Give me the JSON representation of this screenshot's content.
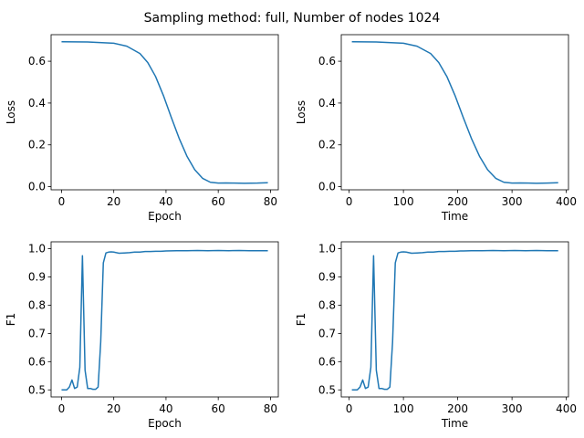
{
  "figure": {
    "title": "Sampling method: full, Number of nodes 1024"
  },
  "style": {
    "line_color": "#1f77b4",
    "background": "#ffffff"
  },
  "chart_data": [
    {
      "type": "line",
      "xlabel": "Epoch",
      "ylabel": "Loss",
      "xlim": [
        -4,
        83
      ],
      "ylim": [
        -0.015,
        0.727
      ],
      "xticks": [
        0,
        20,
        40,
        60,
        80
      ],
      "xticklabels": [
        "0",
        "20",
        "40",
        "60",
        "80"
      ],
      "yticks": [
        0.0,
        0.2,
        0.4,
        0.6
      ],
      "yticklabels": [
        "0.0",
        "0.2",
        "0.4",
        "0.6"
      ],
      "grid": false,
      "series": [
        {
          "x": [
            0,
            10,
            20,
            25,
            30,
            33,
            36,
            39,
            42,
            45,
            48,
            51,
            54,
            57,
            60,
            63,
            66,
            70,
            75,
            79
          ],
          "y": [
            0.693,
            0.692,
            0.686,
            0.672,
            0.637,
            0.594,
            0.527,
            0.436,
            0.332,
            0.232,
            0.146,
            0.081,
            0.04,
            0.021,
            0.017,
            0.018,
            0.017,
            0.016,
            0.017,
            0.019
          ]
        }
      ]
    },
    {
      "type": "line",
      "xlabel": "Time",
      "ylabel": "Loss",
      "xlim": [
        -14.5,
        404
      ],
      "ylim": [
        -0.015,
        0.727
      ],
      "xticks": [
        0,
        100,
        200,
        300,
        400
      ],
      "xticklabels": [
        "0",
        "100",
        "200",
        "300",
        "400"
      ],
      "yticks": [
        0.0,
        0.2,
        0.4,
        0.6
      ],
      "yticklabels": [
        "0.0",
        "0.2",
        "0.4",
        "0.6"
      ],
      "grid": false,
      "series": [
        {
          "x": [
            5,
            50,
            100,
            125,
            150,
            165,
            180,
            195,
            210,
            225,
            240,
            255,
            270,
            285,
            300,
            315,
            330,
            345,
            365,
            385
          ],
          "y": [
            0.693,
            0.692,
            0.686,
            0.672,
            0.637,
            0.594,
            0.527,
            0.436,
            0.332,
            0.232,
            0.146,
            0.081,
            0.04,
            0.021,
            0.017,
            0.018,
            0.017,
            0.016,
            0.017,
            0.019
          ]
        }
      ]
    },
    {
      "type": "line",
      "xlabel": "Epoch",
      "ylabel": "F1",
      "xlim": [
        -4,
        83
      ],
      "ylim": [
        0.475,
        1.0245
      ],
      "xticks": [
        0,
        20,
        40,
        60,
        80
      ],
      "xticklabels": [
        "0",
        "20",
        "40",
        "60",
        "80"
      ],
      "yticks": [
        0.5,
        0.6,
        0.7,
        0.8,
        0.9,
        1.0
      ],
      "yticklabels": [
        "0.5",
        "0.6",
        "0.7",
        "0.8",
        "0.9",
        "1.0"
      ],
      "grid": false,
      "series": [
        {
          "x": [
            0,
            1,
            2,
            3,
            4,
            5,
            6,
            7,
            8,
            9,
            10,
            11,
            12,
            13,
            14,
            15,
            16,
            17,
            18,
            19,
            20,
            22,
            24,
            26,
            28,
            30,
            32,
            34,
            36,
            38,
            40,
            44,
            48,
            52,
            56,
            60,
            64,
            68,
            72,
            76,
            79
          ],
          "y": [
            0.5,
            0.5,
            0.5,
            0.51,
            0.535,
            0.505,
            0.51,
            0.58,
            0.975,
            0.57,
            0.505,
            0.505,
            0.502,
            0.502,
            0.51,
            0.67,
            0.95,
            0.985,
            0.988,
            0.989,
            0.988,
            0.984,
            0.985,
            0.986,
            0.988,
            0.988,
            0.99,
            0.99,
            0.991,
            0.991,
            0.992,
            0.993,
            0.993,
            0.994,
            0.993,
            0.994,
            0.993,
            0.994,
            0.993,
            0.993,
            0.993
          ]
        }
      ]
    },
    {
      "type": "line",
      "xlabel": "Time",
      "ylabel": "F1",
      "xlim": [
        -14.5,
        404
      ],
      "ylim": [
        0.475,
        1.0245
      ],
      "xticks": [
        0,
        100,
        200,
        300,
        400
      ],
      "xticklabels": [
        "0",
        "100",
        "200",
        "300",
        "400"
      ],
      "yticks": [
        0.5,
        0.6,
        0.7,
        0.8,
        0.9,
        1.0
      ],
      "yticklabels": [
        "0.5",
        "0.6",
        "0.7",
        "0.8",
        "0.9",
        "1.0"
      ],
      "grid": false,
      "series": [
        {
          "x": [
            5,
            10,
            15,
            20,
            25,
            30,
            35,
            40,
            45,
            50,
            55,
            60,
            65,
            70,
            75,
            80,
            85,
            90,
            95,
            100,
            105,
            115,
            125,
            135,
            145,
            155,
            165,
            175,
            185,
            195,
            205,
            225,
            245,
            265,
            285,
            305,
            325,
            345,
            365,
            380,
            385
          ],
          "y": [
            0.5,
            0.5,
            0.5,
            0.51,
            0.535,
            0.505,
            0.51,
            0.58,
            0.975,
            0.57,
            0.505,
            0.505,
            0.502,
            0.502,
            0.51,
            0.67,
            0.95,
            0.985,
            0.988,
            0.989,
            0.988,
            0.984,
            0.985,
            0.986,
            0.988,
            0.988,
            0.99,
            0.99,
            0.991,
            0.991,
            0.992,
            0.993,
            0.993,
            0.994,
            0.993,
            0.994,
            0.993,
            0.994,
            0.993,
            0.993,
            0.993
          ]
        }
      ]
    }
  ]
}
